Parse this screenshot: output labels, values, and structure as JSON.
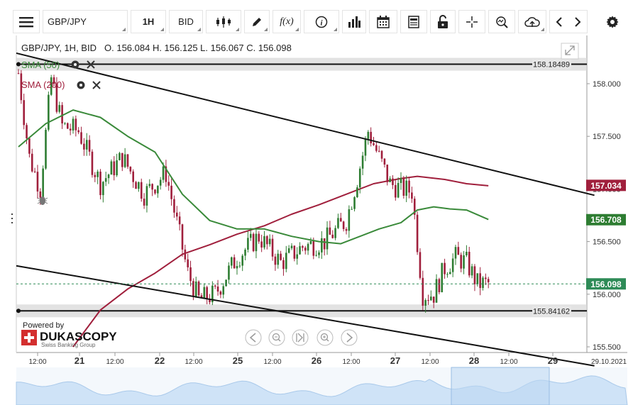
{
  "toolbar": {
    "symbol": "GBP/JPY",
    "timeframe": "1H",
    "side": "BID",
    "function_label": "f(x)"
  },
  "header": {
    "instrument_line": "GBP/JPY, 1H, BID",
    "ohlc_line": "O. 156.084 H. 156.125 L. 156.067 C. 156.098"
  },
  "indicators": {
    "sma50": {
      "label": "SMA (50)",
      "color": "#3a8a3a"
    },
    "sma200": {
      "label": "SMA (200)",
      "color": "#a01f3c"
    }
  },
  "branding": {
    "powered_by": "Powered by",
    "logo_text": "DUKASCOPY",
    "tagline": "Swiss Banking Group"
  },
  "hlines": [
    {
      "value": 158.18489,
      "label": "158.18489"
    },
    {
      "value": 155.84162,
      "label": "155.84162"
    }
  ],
  "price_tags": [
    {
      "value": 157.034,
      "label": "157.034",
      "color": "#a01f3c"
    },
    {
      "value": 156.708,
      "label": "156.708",
      "color": "#2e7d32"
    },
    {
      "value": 156.098,
      "label": "156.098",
      "color": "#2e8b57"
    }
  ],
  "chart_data": {
    "type": "candlestick",
    "yticks": [
      "158.000",
      "157.500",
      "157.000",
      "156.500",
      "156.000",
      "155.500"
    ],
    "ylim": [
      155.4,
      158.35
    ],
    "xticks": [
      "12:00",
      "21",
      "12:00",
      "22",
      "12:00",
      "25",
      "12:00",
      "26",
      "12:00",
      "27",
      "12:00",
      "28",
      "12:00",
      "29",
      "29.10.2021"
    ],
    "last_price": 156.098,
    "series_anchor_points": [
      [
        0,
        158.1
      ],
      [
        4,
        157.3
      ],
      [
        8,
        157.0
      ],
      [
        12,
        158.05
      ],
      [
        16,
        157.6
      ],
      [
        22,
        157.55
      ],
      [
        30,
        157.05
      ],
      [
        38,
        157.3
      ],
      [
        46,
        156.95
      ],
      [
        54,
        157.15
      ],
      [
        62,
        156.2
      ],
      [
        66,
        155.95
      ],
      [
        72,
        156.0
      ],
      [
        80,
        156.35
      ],
      [
        88,
        156.55
      ],
      [
        96,
        156.3
      ],
      [
        104,
        156.45
      ],
      [
        112,
        156.5
      ],
      [
        120,
        156.7
      ],
      [
        124,
        157.1
      ],
      [
        128,
        157.55
      ],
      [
        132,
        157.3
      ],
      [
        136,
        157.05
      ],
      [
        140,
        157.0
      ],
      [
        144,
        156.98
      ],
      [
        148,
        156.0
      ],
      [
        152,
        156.0
      ],
      [
        156,
        156.25
      ],
      [
        160,
        156.35
      ],
      [
        164,
        156.3
      ],
      [
        168,
        156.1
      ],
      [
        172,
        156.1
      ]
    ],
    "sma50_points": [
      [
        0,
        157.4
      ],
      [
        10,
        157.62
      ],
      [
        20,
        157.75
      ],
      [
        30,
        157.68
      ],
      [
        40,
        157.5
      ],
      [
        50,
        157.35
      ],
      [
        60,
        156.95
      ],
      [
        70,
        156.7
      ],
      [
        80,
        156.62
      ],
      [
        90,
        156.62
      ],
      [
        100,
        156.55
      ],
      [
        110,
        156.5
      ],
      [
        118,
        156.48
      ],
      [
        125,
        156.55
      ],
      [
        132,
        156.62
      ],
      [
        140,
        156.68
      ],
      [
        146,
        156.8
      ],
      [
        152,
        156.83
      ],
      [
        158,
        156.81
      ],
      [
        164,
        156.8
      ],
      [
        172,
        156.71
      ]
    ],
    "sma200_points": [
      [
        20,
        155.5
      ],
      [
        30,
        155.85
      ],
      [
        40,
        156.05
      ],
      [
        50,
        156.2
      ],
      [
        60,
        156.38
      ],
      [
        70,
        156.47
      ],
      [
        80,
        156.57
      ],
      [
        90,
        156.65
      ],
      [
        100,
        156.76
      ],
      [
        110,
        156.85
      ],
      [
        120,
        156.95
      ],
      [
        130,
        157.05
      ],
      [
        140,
        157.1
      ],
      [
        146,
        157.12
      ],
      [
        156,
        157.09
      ],
      [
        164,
        157.05
      ],
      [
        172,
        157.03
      ]
    ],
    "trendlines": [
      {
        "from": [
          0,
          158.29
        ],
        "to": [
          176,
          156.94
        ]
      },
      {
        "from": [
          0,
          156.27
        ],
        "to": [
          176,
          155.32
        ]
      }
    ]
  }
}
